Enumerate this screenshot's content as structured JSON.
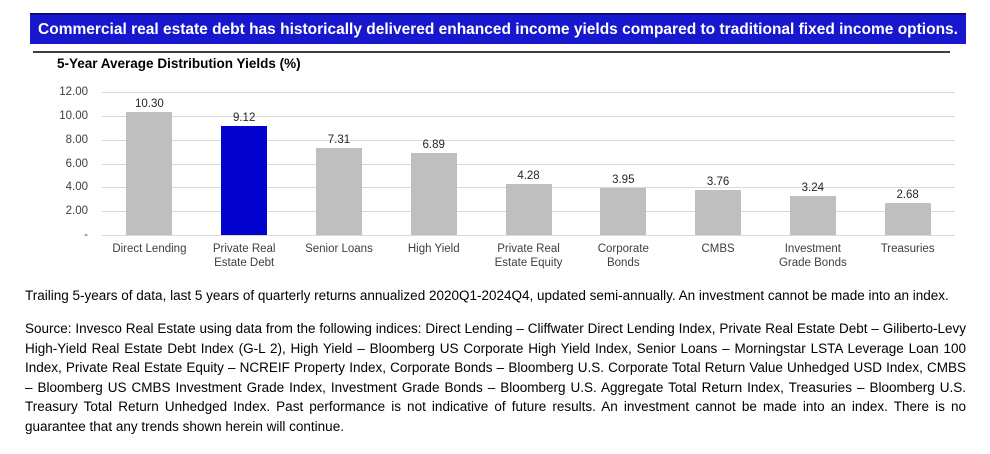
{
  "banner": {
    "text": "Commercial real estate debt has historically delivered enhanced income yields compared to traditional fixed income options.",
    "bg_color": "#1717ce",
    "text_color": "#ffffff"
  },
  "chart": {
    "title": "5-Year Average Distribution Yields (%)"
  },
  "chart_data": {
    "type": "bar",
    "title": "5-Year Average Distribution Yields (%)",
    "categories": [
      "Direct Lending",
      "Private Real Estate Debt",
      "Senior Loans",
      "High Yield",
      "Private Real Estate Equity",
      "Corporate Bonds",
      "CMBS",
      "Investment Grade Bonds",
      "Treasuries"
    ],
    "values": [
      10.3,
      9.12,
      7.31,
      6.89,
      4.28,
      3.95,
      3.76,
      3.24,
      2.68
    ],
    "value_labels": [
      "10.30",
      "9.12",
      "7.31",
      "6.89",
      "4.28",
      "3.95",
      "3.76",
      "3.24",
      "2.68"
    ],
    "xlabel": "",
    "ylabel": "",
    "ylim": [
      0,
      12
    ],
    "ytick_values": [
      12,
      10,
      8,
      6,
      4,
      2,
      0
    ],
    "ytick_labels": [
      "12.00",
      "10.00",
      "8.00",
      "6.00",
      "4.00",
      "2.00",
      "-"
    ],
    "grid": true,
    "legend_position": "none",
    "bar_color": "#bfbfbf",
    "highlight_index": 1,
    "highlight_color": "#0202cc"
  },
  "footnotes": {
    "trailing": "Trailing 5-years of data, last 5 years of quarterly returns annualized 2020Q1-2024Q4, updated semi-annually. An investment cannot be made into an index.",
    "source": "Source: Invesco Real Estate using data from the following indices: Direct Lending – Cliffwater Direct Lending Index, Private Real Estate Debt – Giliberto-Levy High-Yield Real Estate Debt Index (G-L 2), High Yield – Bloomberg US Corporate High Yield Index, Senior Loans – Morningstar LSTA Leverage Loan 100 Index, Private Real Estate Equity – NCREIF Property Index, Corporate Bonds – Bloomberg U.S. Corporate Total Return Value Unhedged USD Index, CMBS – Bloomberg US CMBS Investment Grade Index, Investment Grade Bonds – Bloomberg U.S. Aggregate Total Return Index, Treasuries – Bloomberg U.S. Treasury Total Return Unhedged Index. Past performance is not indicative of future results. An investment cannot be made into an index. There is no guarantee that any trends shown herein will continue."
  }
}
